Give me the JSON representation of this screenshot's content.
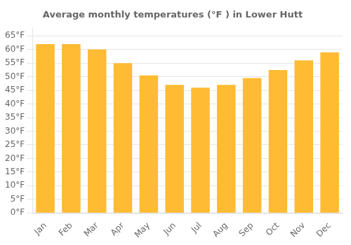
{
  "chart_data": {
    "type": "bar",
    "title": "Average monthly temperatures (°F ) in Lower Hutt",
    "categories": [
      "Jan",
      "Feb",
      "Mar",
      "Apr",
      "May",
      "Jun",
      "Jul",
      "Aug",
      "Sep",
      "Oct",
      "Nov",
      "Dec"
    ],
    "values": [
      62,
      62,
      60,
      55,
      50.5,
      47,
      46,
      47,
      49.5,
      52.5,
      56,
      59
    ],
    "color": "#FFBB33",
    "ylim": [
      0,
      68
    ],
    "yticks": [
      {
        "value": 0,
        "label": "0°F"
      },
      {
        "value": 5,
        "label": "5°F"
      },
      {
        "value": 10,
        "label": "10°F"
      },
      {
        "value": 15,
        "label": "15°F"
      },
      {
        "value": 20,
        "label": "20°F"
      },
      {
        "value": 25,
        "label": "25°F"
      },
      {
        "value": 30,
        "label": "30°F"
      },
      {
        "value": 35,
        "label": "35°F"
      },
      {
        "value": 40,
        "label": "40°F"
      },
      {
        "value": 45,
        "label": "45°F"
      },
      {
        "value": 50,
        "label": "50°F"
      },
      {
        "value": 55,
        "label": "55°F"
      },
      {
        "value": 60,
        "label": "60°F"
      },
      {
        "value": 65,
        "label": "65°F"
      }
    ],
    "grid": true
  }
}
